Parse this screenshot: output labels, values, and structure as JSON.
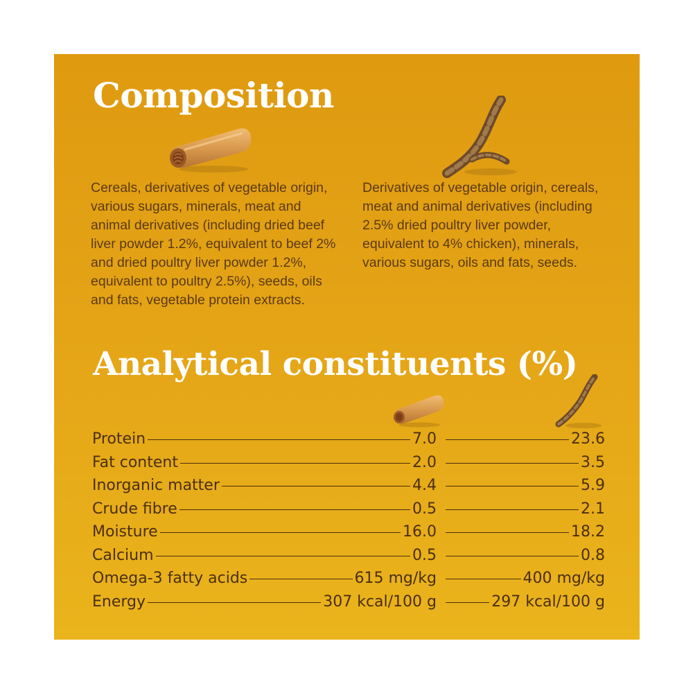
{
  "composition": {
    "title": "Composition",
    "left_text": "Cereals, derivatives of vegetable origin, various sugars, minerals, meat and animal derivatives (including dried beef liver powder 1.2%, equivalent to beef 2% and dried poultry liver powder 1.2%, equivalent to poultry 2.5%), seeds, oils and fats, vegetable protein extracts.",
    "right_text": "Derivatives of vegetable origin, cereals, meat and animal derivatives (including 2.5% dried poultry liver powder, equivalent to 4% chicken), minerals, various sugars, oils and fats, seeds."
  },
  "analytical": {
    "title": "Analytical constituents (%)",
    "rows": [
      {
        "label": "Protein",
        "v1": "7.0",
        "v2": "23.6"
      },
      {
        "label": "Fat content",
        "v1": "2.0",
        "v2": "3.5"
      },
      {
        "label": "Inorganic matter",
        "v1": "4.4",
        "v2": "5.9"
      },
      {
        "label": "Crude fibre",
        "v1": "0.5",
        "v2": "2.1"
      },
      {
        "label": "Moisture",
        "v1": "16.0",
        "v2": "18.2"
      },
      {
        "label": "Calcium",
        "v1": "0.5",
        "v2": "0.8"
      },
      {
        "label": "Omega-3 fatty acids",
        "v1": "615 mg/kg",
        "v2": "400 mg/kg"
      },
      {
        "label": "Energy",
        "v1": "307 kcal/100 g",
        "v2": "297 kcal/100 g"
      }
    ]
  },
  "icons": {
    "product_1": "dental-stick-icon",
    "product_2": "twisted-stick-icon"
  },
  "colors": {
    "background": "#e3a014",
    "heading": "#ffffff",
    "text": "#5b3a12"
  }
}
